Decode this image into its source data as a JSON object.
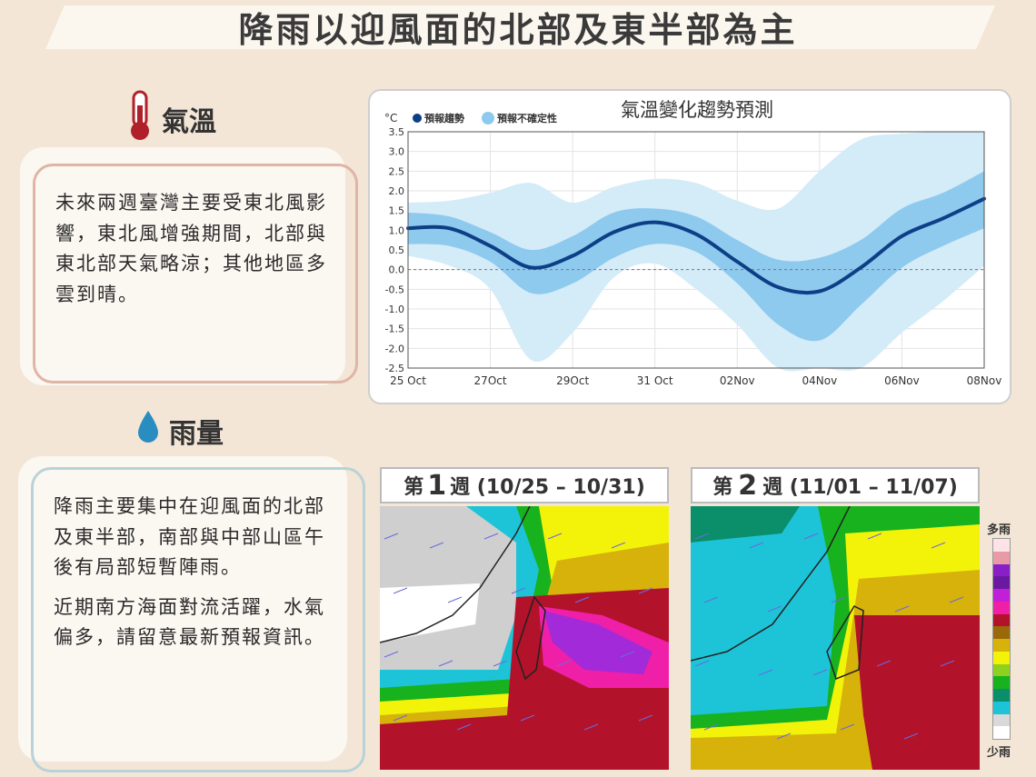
{
  "page_title": "降雨以迎風面的北部及東半部為主",
  "temperature": {
    "heading": "氣溫",
    "icon": "thermometer-icon",
    "text": "未來兩週臺灣主要受東北風影響，東北風增強期間，北部與東北部天氣略涼；其他地區多雲到晴。"
  },
  "rain": {
    "heading": "雨量",
    "icon": "water-drop-icon",
    "paragraphs": [
      "降雨主要集中在迎風面的北部及東半部，南部與中部山區午後有局部短暫陣雨。",
      "近期南方海面對流活躍，水氣偏多，請留意最新預報資訊。"
    ]
  },
  "chart_data": {
    "type": "line",
    "title": "氣溫變化趨勢預測",
    "unit_label": "°C",
    "legend": [
      "預報趨勢",
      "預報不確定性"
    ],
    "x_tick_labels": [
      "25 Oct",
      "27Oct",
      "29Oct",
      "31 Oct",
      "02Nov",
      "04Nov",
      "06Nov",
      "08Nov"
    ],
    "ylim": [
      -2.5,
      3.5
    ],
    "y_ticks": [
      "3.5",
      "3.0",
      "2.5",
      "2.0",
      "1.5",
      "1.0",
      "0.5",
      "0.0",
      "-0.5",
      "-1.0",
      "-1.5",
      "-2.0",
      "-2.5"
    ],
    "x_range": [
      0,
      14
    ],
    "series": [
      {
        "name": "預報趨勢",
        "x": [
          0,
          1,
          2,
          3,
          4,
          5,
          6,
          7,
          8,
          9,
          10,
          11,
          12,
          13,
          14
        ],
        "values": [
          1.05,
          1.05,
          0.6,
          0.05,
          0.35,
          0.95,
          1.2,
          0.9,
          0.2,
          -0.45,
          -0.55,
          0.05,
          0.85,
          1.3,
          1.8
        ]
      }
    ],
    "inner_band": {
      "upper": [
        1.45,
        1.35,
        0.95,
        0.5,
        0.85,
        1.45,
        1.55,
        1.35,
        0.75,
        0.25,
        0.3,
        0.75,
        1.55,
        1.95,
        2.5
      ],
      "lower": [
        0.65,
        0.6,
        0.2,
        -0.6,
        -0.35,
        0.3,
        0.65,
        0.45,
        -0.35,
        -1.4,
        -1.8,
        -0.9,
        0.05,
        0.6,
        1.05
      ]
    },
    "outer_band": {
      "upper": [
        1.7,
        1.75,
        1.95,
        2.2,
        1.7,
        2.1,
        2.3,
        2.2,
        1.75,
        1.55,
        2.5,
        3.3,
        3.45,
        3.5,
        3.5
      ],
      "lower": [
        0.35,
        0.1,
        -0.5,
        -2.3,
        -1.6,
        -0.2,
        0.15,
        -0.5,
        -1.4,
        -2.5,
        -2.5,
        -2.5,
        -1.6,
        -0.8,
        0.1
      ]
    },
    "grid": true,
    "legend_position": "top-left"
  },
  "maps": {
    "week1_prefix": "第",
    "week1_num": "1",
    "week1_suffix": "週 (10/25 – 10/31)",
    "week2_prefix": "第",
    "week2_num": "2",
    "week2_suffix": "週 (11/01 – 11/07)"
  },
  "rain_legend": {
    "top_label": "多雨",
    "bottom_label": "少雨",
    "colors": [
      "#fde3e8",
      "#e89aa6",
      "#8a1fc8",
      "#6a1aa0",
      "#c21fd8",
      "#f01fa8",
      "#b2122a",
      "#9a6a0a",
      "#d6b20a",
      "#f3f30a",
      "#8ed11f",
      "#18b21e",
      "#0a8f6a",
      "#1dc4d8",
      "#d9d9d9",
      "#ffffff"
    ]
  },
  "colors": {
    "trend_line": "#0d3f86",
    "inner_band": "#8ec9ee",
    "outer_band": "#d4ebf8",
    "temp_card_border": "#e0b4a6",
    "rain_card_border": "#b8d3d8"
  }
}
